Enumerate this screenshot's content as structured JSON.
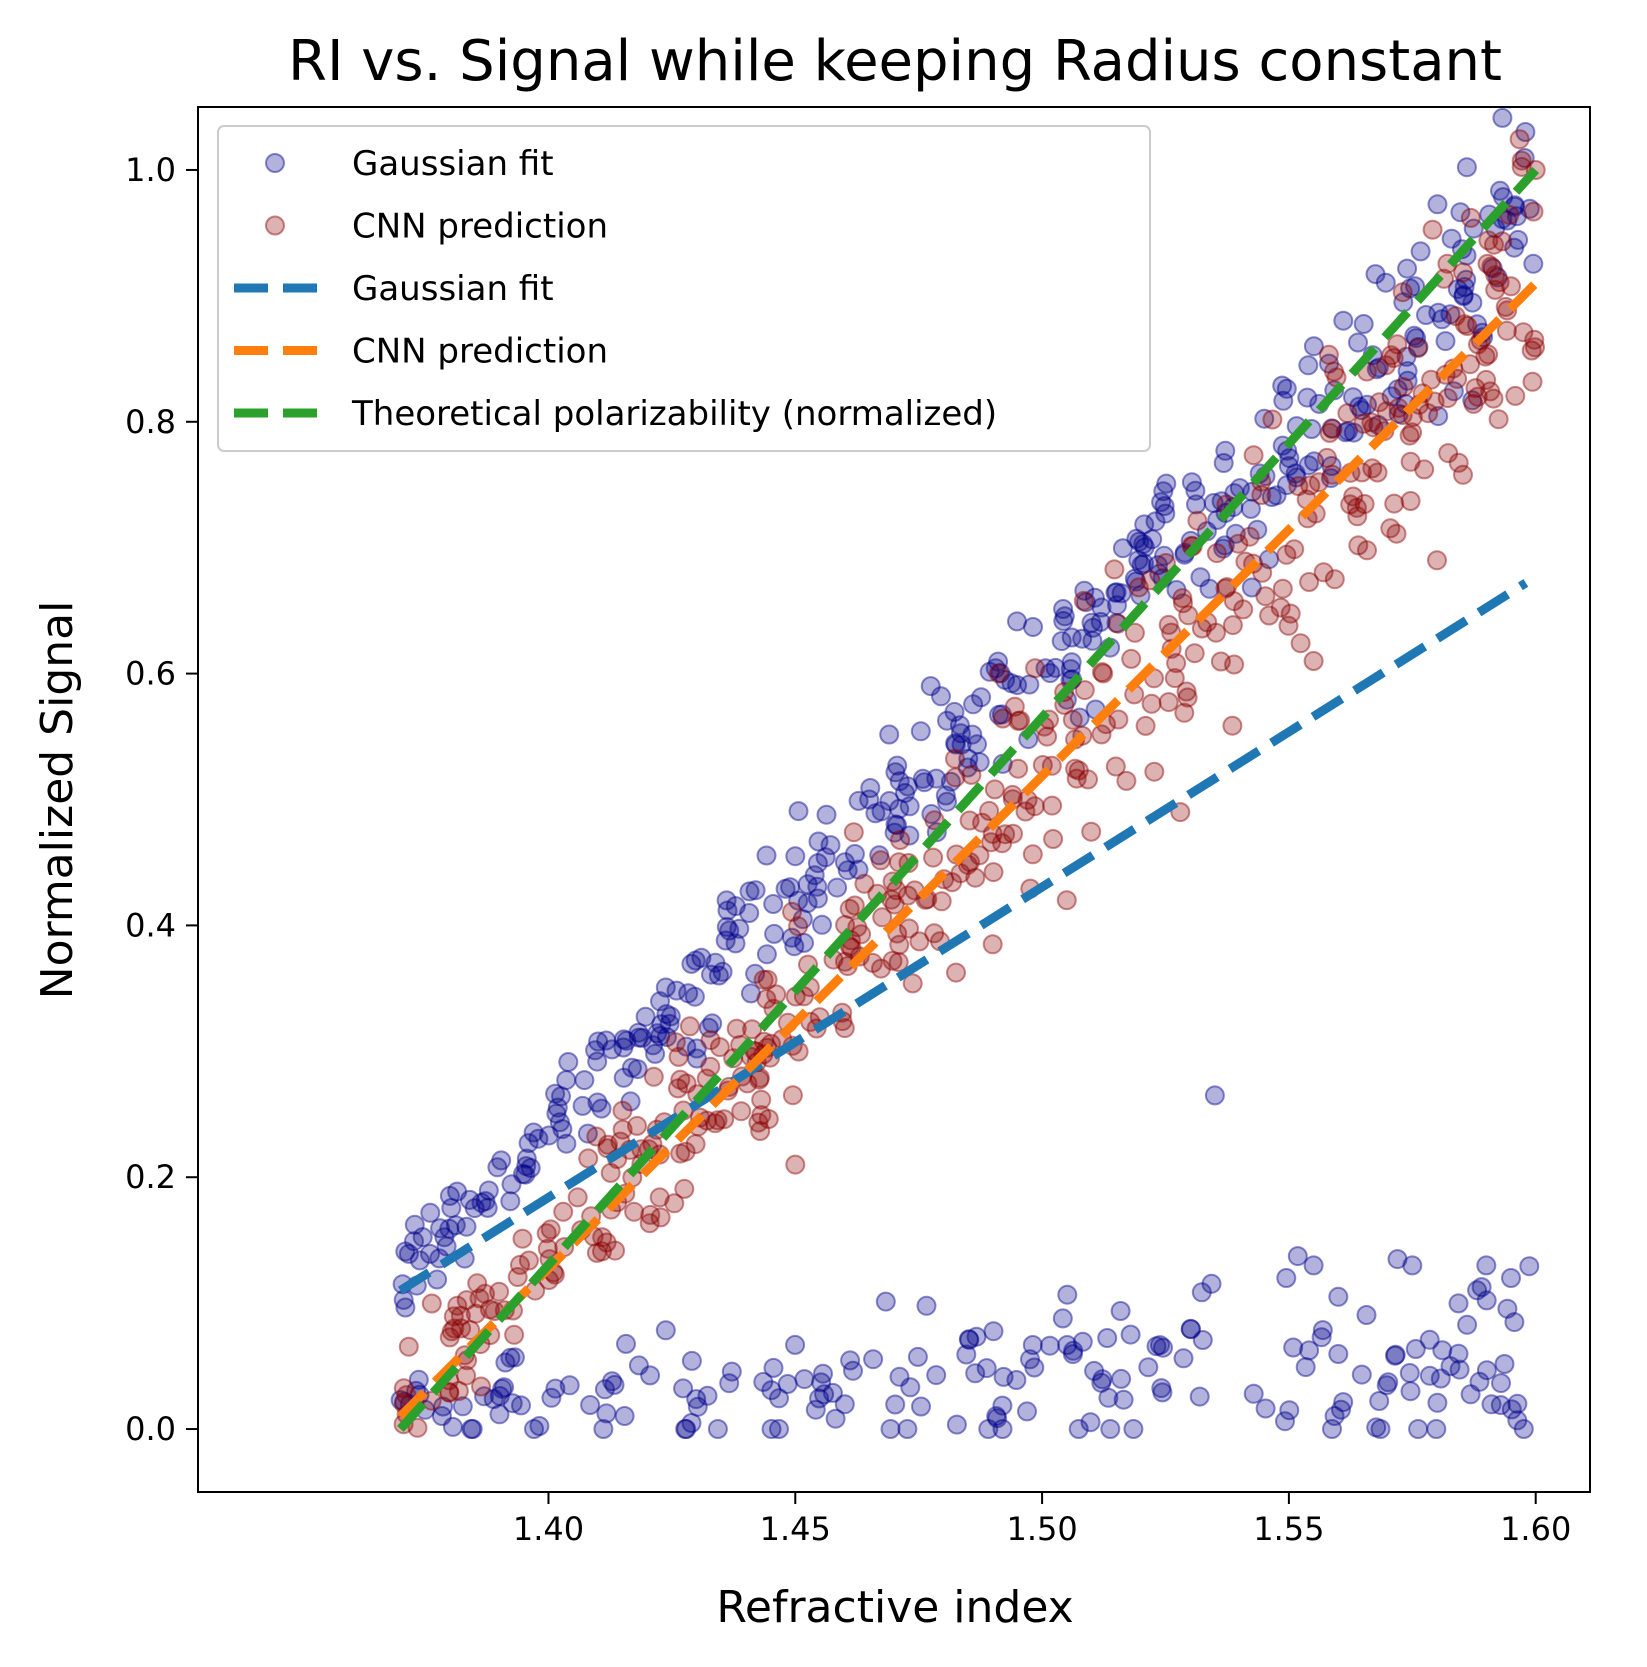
{
  "chart_data": {
    "type": "scatter",
    "title": "RI vs. Signal while keeping Radius constant",
    "xlabel": "Refractive index",
    "ylabel": "Normalized Signal",
    "xlim": [
      1.329,
      1.611
    ],
    "ylim": [
      -0.05,
      1.05
    ],
    "x_ticks": [
      "1.40",
      "1.45",
      "1.50",
      "1.55",
      "1.60"
    ],
    "y_ticks": [
      "0.0",
      "0.2",
      "0.4",
      "0.6",
      "0.8",
      "1.0"
    ],
    "legend": {
      "position": "top-left"
    },
    "grid": false,
    "scatter_series": [
      {
        "name": "Gaussian fit",
        "color": "#00008b",
        "alpha": 0.3,
        "marker": "circle",
        "bands": [
          {
            "label": "main",
            "x_range": [
              1.37,
              1.6
            ],
            "y_start": 0.125,
            "y_end": 0.975,
            "spread": 0.025,
            "count": 380
          },
          {
            "label": "low",
            "x_range": [
              1.37,
              1.6
            ],
            "y_start": 0.015,
            "y_end": 0.055,
            "spread": 0.025,
            "count": 190
          }
        ],
        "points": [
          {
            "x": 1.535,
            "y": 0.265
          },
          {
            "x": 1.45,
            "y": 0.455
          },
          {
            "x": 1.572,
            "y": 0.135
          },
          {
            "x": 1.575,
            "y": 0.13
          },
          {
            "x": 1.555,
            "y": 0.13
          },
          {
            "x": 1.59,
            "y": 0.13
          },
          {
            "x": 1.595,
            "y": 0.12
          },
          {
            "x": 1.56,
            "y": 0.105
          }
        ]
      },
      {
        "name": "CNN prediction",
        "color": "#8b0000",
        "alpha": 0.3,
        "marker": "circle",
        "bands": [
          {
            "label": "main",
            "x_range": [
              1.37,
              1.6
            ],
            "y_start": 0.02,
            "y_end": 0.92,
            "spread": 0.035,
            "count": 430
          }
        ],
        "points": [
          {
            "x": 1.45,
            "y": 0.21
          },
          {
            "x": 1.528,
            "y": 0.49
          },
          {
            "x": 1.505,
            "y": 0.42
          },
          {
            "x": 1.49,
            "y": 0.385
          },
          {
            "x": 1.555,
            "y": 0.61
          },
          {
            "x": 1.58,
            "y": 0.69
          },
          {
            "x": 1.6,
            "y": 1.0
          }
        ]
      }
    ],
    "line_series": [
      {
        "name": "Gaussian fit",
        "color": "#1f77b4",
        "style": "dashed",
        "x": [
          1.37,
          1.598
        ],
        "y": [
          0.11,
          0.672
        ]
      },
      {
        "name": "CNN prediction",
        "color": "#ff7f0e",
        "style": "dashed",
        "x": [
          1.37,
          1.6
        ],
        "y": [
          0.01,
          0.91
        ]
      },
      {
        "name": "Theoretical polarizability (normalized)",
        "color": "#2ca02c",
        "style": "dashed",
        "x": [
          1.37,
          1.6
        ],
        "y": [
          0.0,
          1.0
        ]
      }
    ]
  }
}
